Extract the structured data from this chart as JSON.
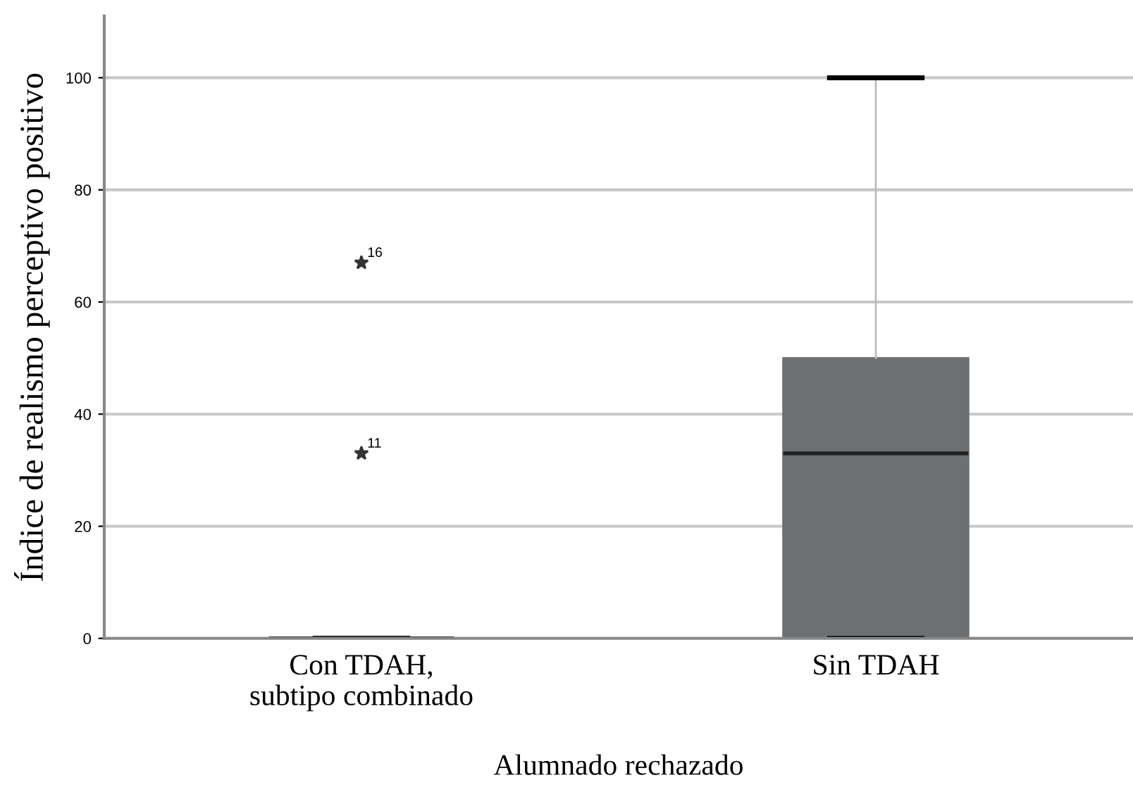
{
  "chart_data": {
    "type": "box",
    "xlabel": "Alumnado rechazado",
    "ylabel": "Índice de realismo perceptivo positivo",
    "categories": [
      "Con TDAH,\nsubtipo combinado",
      "Sin TDAH"
    ],
    "boxes": [
      {
        "low": 0,
        "q1": 0,
        "median": 0,
        "q3": 0,
        "high": 0,
        "outliers": [
          33,
          67
        ]
      },
      {
        "low": 0,
        "q1": 0,
        "median": 33,
        "q3": 50,
        "high": 100
      }
    ],
    "color": "#6d7072",
    "annotations": [
      "11",
      "16"
    ],
    "ylim": [
      0,
      111
    ],
    "yticks": [
      0,
      20,
      40,
      60,
      80,
      100
    ],
    "grid": "y",
    "marker": "star",
    "legend": false
  }
}
